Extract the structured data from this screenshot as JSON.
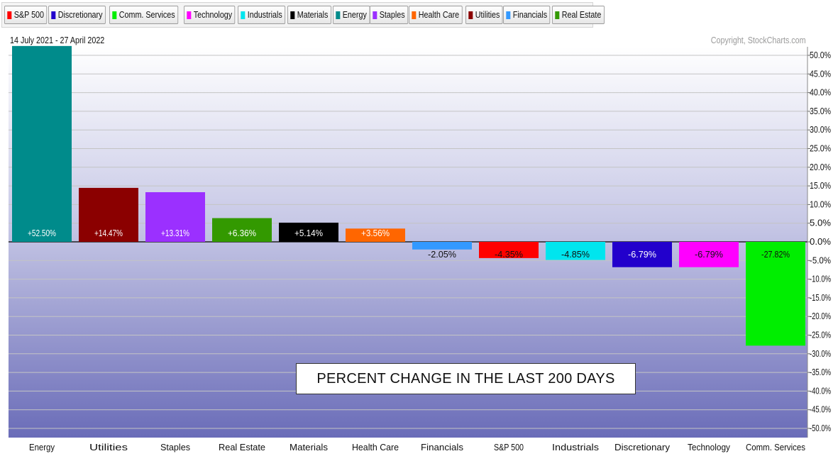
{
  "legend": [
    {
      "label": "S&P 500",
      "color": "#ff0000"
    },
    {
      "label": "Discretionary",
      "color": "#2200cc"
    },
    {
      "label": "Comm. Services",
      "color": "#00ee00"
    },
    {
      "label": "Technology",
      "color": "#ff00ff"
    },
    {
      "label": "Industrials",
      "color": "#00e5ee"
    },
    {
      "label": "Materials",
      "color": "#000000"
    },
    {
      "label": "Energy",
      "color": "#008b8b"
    },
    {
      "label": "Staples",
      "color": "#9b30ff"
    },
    {
      "label": "Health Care",
      "color": "#ff6600"
    },
    {
      "label": "Utilities",
      "color": "#8b0000"
    },
    {
      "label": "Financials",
      "color": "#3399ff"
    },
    {
      "label": "Real Estate",
      "color": "#339900"
    }
  ],
  "date_range": "14 July 2021 - 27 April 2022",
  "copyright": "Copyright, StockCharts.com",
  "title_box": "PERCENT CHANGE IN THE LAST 200 DAYS",
  "chart_data": {
    "type": "bar",
    "title": "PERCENT CHANGE IN THE LAST 200 DAYS",
    "categories": [
      "Energy",
      "Utilities",
      "Staples",
      "Real Estate",
      "Materials",
      "Health Care",
      "Financials",
      "S&P 500",
      "Industrials",
      "Discretionary",
      "Technology",
      "Comm. Services"
    ],
    "values": [
      52.5,
      14.47,
      13.31,
      6.36,
      5.14,
      3.56,
      -2.05,
      -4.35,
      -4.85,
      -6.79,
      -6.79,
      -27.82
    ],
    "labels": [
      "+52.50%",
      "+14.47%",
      "+13.31%",
      "+6.36%",
      "+5.14%",
      "+3.56%",
      "-2.05%",
      "-4.35%",
      "-4.85%",
      "-6.79%",
      "-6.79%",
      "-27.82%"
    ],
    "colors": [
      "#008b8b",
      "#8b0000",
      "#9b30ff",
      "#339900",
      "#000000",
      "#ff6600",
      "#3399ff",
      "#ff0000",
      "#00e5ee",
      "#2200cc",
      "#ff00ff",
      "#00ee00"
    ],
    "label_colors": [
      "#ffffff",
      "#ffffff",
      "#ffffff",
      "#ffffff",
      "#ffffff",
      "#ffffff",
      "#111111",
      "#111111",
      "#111111",
      "#ffffff",
      "#111111",
      "#111111"
    ],
    "ylim": [
      -52,
      51
    ],
    "yticks": [
      50,
      45,
      40,
      35,
      30,
      25,
      20,
      15,
      10,
      5,
      0,
      -5,
      -10,
      -15,
      -20,
      -25,
      -30,
      -35,
      -40,
      -45,
      -50
    ],
    "ytick_labels": [
      "50.0%",
      "45.0%",
      "40.0%",
      "35.0%",
      "30.0%",
      "25.0%",
      "20.0%",
      "15.0%",
      "10.0%",
      "5.0%",
      "0.0%",
      "-5.0%",
      "-10.0%",
      "-15.0%",
      "-20.0%",
      "-25.0%",
      "-30.0%",
      "-35.0%",
      "-40.0%",
      "-45.0%",
      "-50.0%"
    ],
    "y_axis_position": "right",
    "grid": true
  }
}
